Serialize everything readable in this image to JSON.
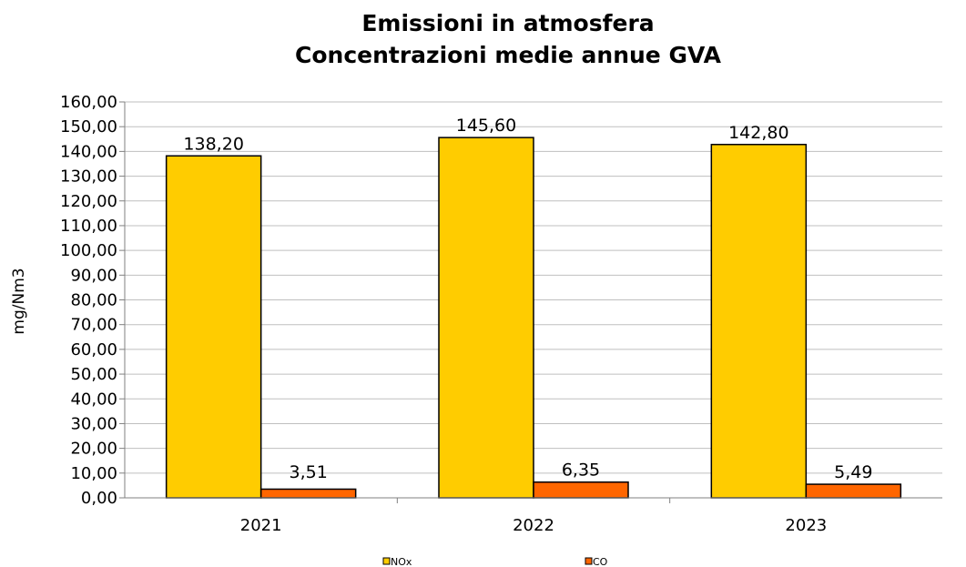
{
  "chart_data": {
    "type": "bar",
    "title_line1": "Emissioni in atmosfera",
    "title_line2": "Concentrazioni medie annue GVA",
    "ylabel": "mg/Nm3",
    "categories": [
      "2021",
      "2022",
      "2023"
    ],
    "series": [
      {
        "name": "NOx",
        "values": [
          138.2,
          145.6,
          142.8
        ],
        "labels": [
          "138,20",
          "145,60",
          "142,80"
        ],
        "color": "#ffcc00"
      },
      {
        "name": "CO",
        "values": [
          3.51,
          6.35,
          5.49
        ],
        "labels": [
          "3,51",
          "6,35",
          "5,49"
        ],
        "color": "#ff6600"
      }
    ],
    "ylim": [
      0,
      160
    ],
    "yticks": [
      "0,00",
      "10,00",
      "20,00",
      "30,00",
      "40,00",
      "50,00",
      "60,00",
      "70,00",
      "80,00",
      "90,00",
      "100,00",
      "110,00",
      "120,00",
      "130,00",
      "140,00",
      "150,00",
      "160,00"
    ],
    "grid": true,
    "legend": "bottom"
  }
}
